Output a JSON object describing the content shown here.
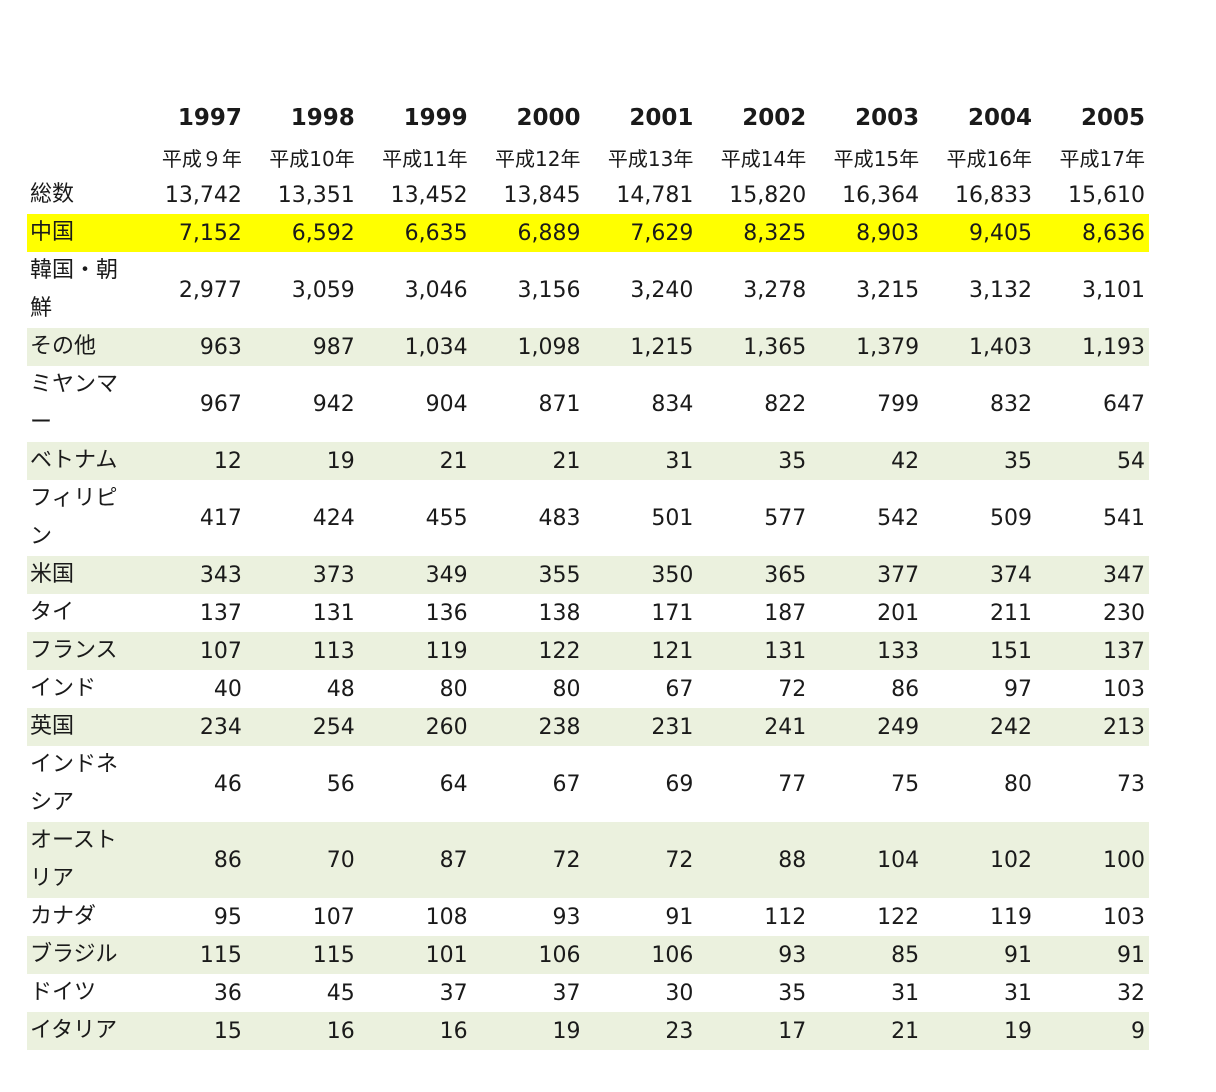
{
  "table": {
    "years": [
      "1997",
      "1998",
      "1999",
      "2000",
      "2001",
      "2002",
      "2003",
      "2004",
      "2005"
    ],
    "eras": [
      "平成９年",
      "平成10年",
      "平成11年",
      "平成12年",
      "平成13年",
      "平成14年",
      "平成15年",
      "平成16年",
      "平成17年"
    ],
    "rows": [
      {
        "name": "総数",
        "values": [
          "13,742",
          "13,351",
          "13,452",
          "13,845",
          "14,781",
          "15,820",
          "16,364",
          "16,833",
          "15,610"
        ],
        "style": "none",
        "lines": 1
      },
      {
        "name": "中国",
        "values": [
          "7,152",
          "6,592",
          "6,635",
          "6,889",
          "7,629",
          "8,325",
          "8,903",
          "9,405",
          "8,636"
        ],
        "style": "highlight",
        "lines": 1
      },
      {
        "name": "韓国・朝鮮",
        "values": [
          "2,977",
          "3,059",
          "3,046",
          "3,156",
          "3,240",
          "3,278",
          "3,215",
          "3,132",
          "3,101"
        ],
        "style": "none",
        "lines": 2
      },
      {
        "name": "その他",
        "values": [
          "963",
          "987",
          "1,034",
          "1,098",
          "1,215",
          "1,365",
          "1,379",
          "1,403",
          "1,193"
        ],
        "style": "shade",
        "lines": 1
      },
      {
        "name": "ミヤンマー",
        "values": [
          "967",
          "942",
          "904",
          "871",
          "834",
          "822",
          "799",
          "832",
          "647"
        ],
        "style": "none",
        "lines": 2
      },
      {
        "name": "ベトナム",
        "values": [
          "12",
          "19",
          "21",
          "21",
          "31",
          "35",
          "42",
          "35",
          "54"
        ],
        "style": "shade",
        "lines": 1
      },
      {
        "name": "フィリピン",
        "values": [
          "417",
          "424",
          "455",
          "483",
          "501",
          "577",
          "542",
          "509",
          "541"
        ],
        "style": "none",
        "lines": 2
      },
      {
        "name": "米国",
        "values": [
          "343",
          "373",
          "349",
          "355",
          "350",
          "365",
          "377",
          "374",
          "347"
        ],
        "style": "shade",
        "lines": 1
      },
      {
        "name": "タイ",
        "values": [
          "137",
          "131",
          "136",
          "138",
          "171",
          "187",
          "201",
          "211",
          "230"
        ],
        "style": "none",
        "lines": 1
      },
      {
        "name": "フランス",
        "values": [
          "107",
          "113",
          "119",
          "122",
          "121",
          "131",
          "133",
          "151",
          "137"
        ],
        "style": "shade",
        "lines": 1
      },
      {
        "name": "インド",
        "values": [
          "40",
          "48",
          "80",
          "80",
          "67",
          "72",
          "86",
          "97",
          "103"
        ],
        "style": "none",
        "lines": 1
      },
      {
        "name": "英国",
        "values": [
          "234",
          "254",
          "260",
          "238",
          "231",
          "241",
          "249",
          "242",
          "213"
        ],
        "style": "shade",
        "lines": 1
      },
      {
        "name": "インドネシア",
        "values": [
          "46",
          "56",
          "64",
          "67",
          "69",
          "77",
          "75",
          "80",
          "73"
        ],
        "style": "none",
        "lines": 2
      },
      {
        "name": "オーストリア",
        "values": [
          "86",
          "70",
          "87",
          "72",
          "72",
          "88",
          "104",
          "102",
          "100"
        ],
        "style": "shade",
        "lines": 2
      },
      {
        "name": "カナダ",
        "values": [
          "95",
          "107",
          "108",
          "93",
          "91",
          "112",
          "122",
          "119",
          "103"
        ],
        "style": "none",
        "lines": 1
      },
      {
        "name": "ブラジル",
        "values": [
          "115",
          "115",
          "101",
          "106",
          "106",
          "93",
          "85",
          "91",
          "91"
        ],
        "style": "shade",
        "lines": 1
      },
      {
        "name": "ドイツ",
        "values": [
          "36",
          "45",
          "37",
          "37",
          "30",
          "35",
          "31",
          "31",
          "32"
        ],
        "style": "none",
        "lines": 1
      },
      {
        "name": "イタリア",
        "values": [
          "15",
          "16",
          "16",
          "19",
          "23",
          "17",
          "21",
          "19",
          "9"
        ],
        "style": "shade",
        "lines": 1
      }
    ]
  }
}
